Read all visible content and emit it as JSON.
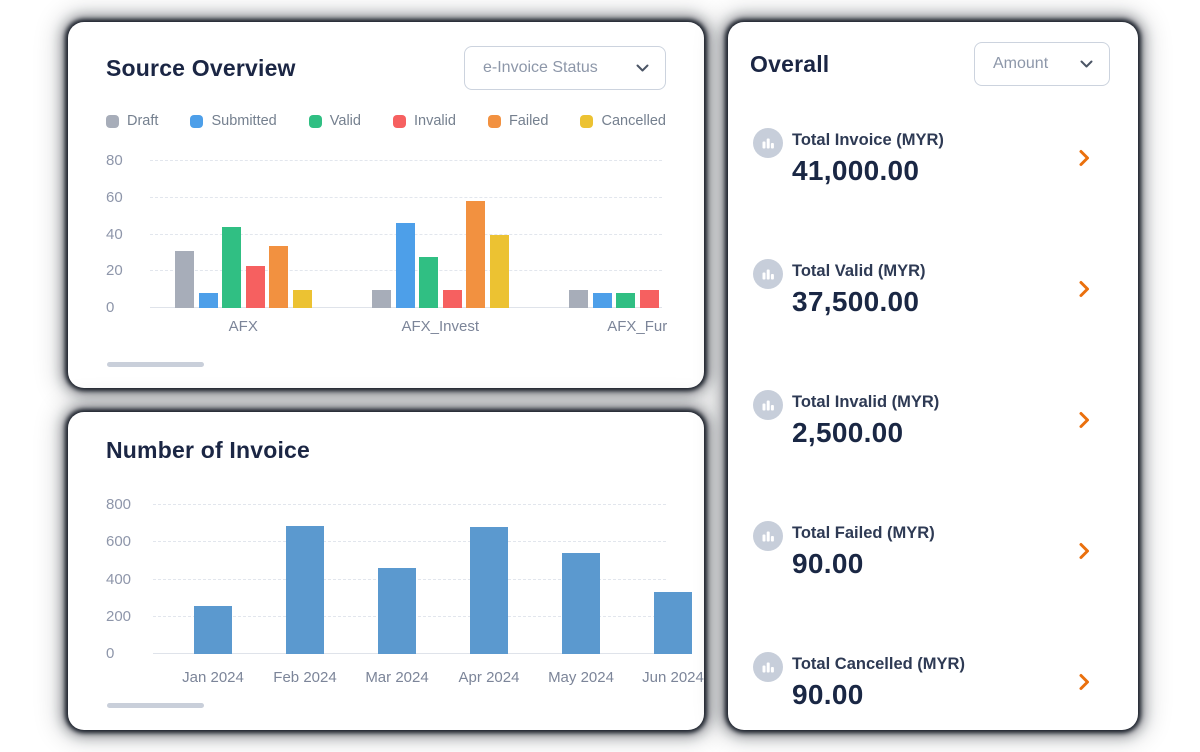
{
  "source_overview": {
    "title": "Source Overview",
    "dropdown_value": "e-Invoice Status"
  },
  "number_of_invoice": {
    "title": "Number of Invoice"
  },
  "overall": {
    "title": "Overall",
    "dropdown_value": "Amount",
    "items": [
      {
        "icon": "bar-chart-icon",
        "label": "Total Invoice (MYR)",
        "value": "41,000.00"
      },
      {
        "icon": "bar-chart-icon",
        "label": "Total Valid (MYR)",
        "value": "37,500.00"
      },
      {
        "icon": "bar-chart-icon",
        "label": "Total Invalid (MYR)",
        "value": "2,500.00"
      },
      {
        "icon": "bar-chart-icon",
        "label": "Total Failed (MYR)",
        "value": "90.00"
      },
      {
        "icon": "bar-chart-icon",
        "label": "Total Cancelled (MYR)",
        "value": "90.00"
      }
    ]
  },
  "colors": {
    "accent_orange": "#ea700d",
    "icon_circle_bg": "#c7ceda",
    "invoice_bar_blue": "#5b99cf"
  },
  "chart_data": [
    {
      "type": "bar",
      "title": "Source Overview",
      "grouped": true,
      "categories": [
        "AFX",
        "AFX_Invest",
        "AFX_Fur"
      ],
      "series": [
        {
          "name": "Draft",
          "color": "#a7adb9",
          "values": [
            31,
            10,
            10
          ]
        },
        {
          "name": "Submitted",
          "color": "#4d9fe9",
          "values": [
            8,
            46,
            8
          ]
        },
        {
          "name": "Valid",
          "color": "#30bf83",
          "values": [
            44,
            28,
            8
          ]
        },
        {
          "name": "Invalid",
          "color": "#f66060",
          "values": [
            23,
            10,
            10
          ]
        },
        {
          "name": "Failed",
          "color": "#f29140",
          "values": [
            34,
            58,
            null
          ]
        },
        {
          "name": "Cancelled",
          "color": "#ecc232",
          "values": [
            10,
            40,
            null
          ]
        }
      ],
      "ylim": [
        0,
        80
      ],
      "ytick_step": 20,
      "grid": true,
      "legend_position": "top",
      "note": "horizontally scrollable, third category partially clipped"
    },
    {
      "type": "bar",
      "title": "Number of Invoice",
      "categories": [
        "Jan 2024",
        "Feb 2024",
        "Mar 2024",
        "Apr 2024",
        "May 2024",
        "Jun 2024"
      ],
      "values": [
        260,
        685,
        460,
        680,
        545,
        335
      ],
      "color": "#5b99cf",
      "ylim": [
        0,
        800
      ],
      "ytick_step": 200,
      "grid": true,
      "note": "horizontally scrollable, last bar and label partially clipped"
    }
  ]
}
